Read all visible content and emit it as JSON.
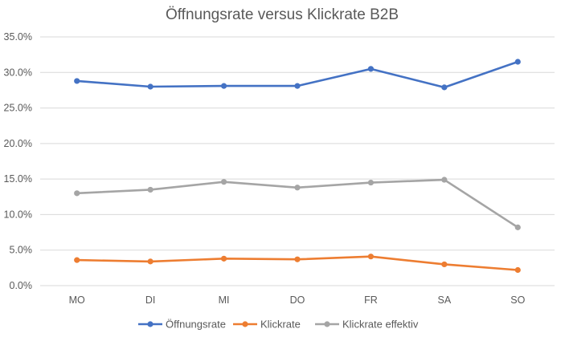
{
  "chart_data": {
    "type": "line",
    "title": "Öffnungsrate versus Klickrate B2B",
    "categories": [
      "MO",
      "DI",
      "MI",
      "DO",
      "FR",
      "SA",
      "SO"
    ],
    "ylim": [
      0,
      35
    ],
    "yticks": [
      0,
      5,
      10,
      15,
      20,
      25,
      30,
      35
    ],
    "ytick_labels": [
      "0.0%",
      "5.0%",
      "10.0%",
      "15.0%",
      "20.0%",
      "25.0%",
      "30.0%",
      "35.0%"
    ],
    "grid": true,
    "legend_position": "bottom",
    "series": [
      {
        "name": "Öffnungsrate",
        "color": "#4472c4",
        "values": [
          28.8,
          28.0,
          28.1,
          28.1,
          30.5,
          27.9,
          31.5
        ]
      },
      {
        "name": "Klickrate",
        "color": "#ed7d31",
        "values": [
          3.6,
          3.4,
          3.8,
          3.7,
          4.1,
          3.0,
          2.2
        ]
      },
      {
        "name": "Klickrate effektiv",
        "color": "#a5a5a5",
        "values": [
          13.0,
          13.5,
          14.6,
          13.8,
          14.5,
          14.9,
          8.2
        ]
      }
    ]
  }
}
